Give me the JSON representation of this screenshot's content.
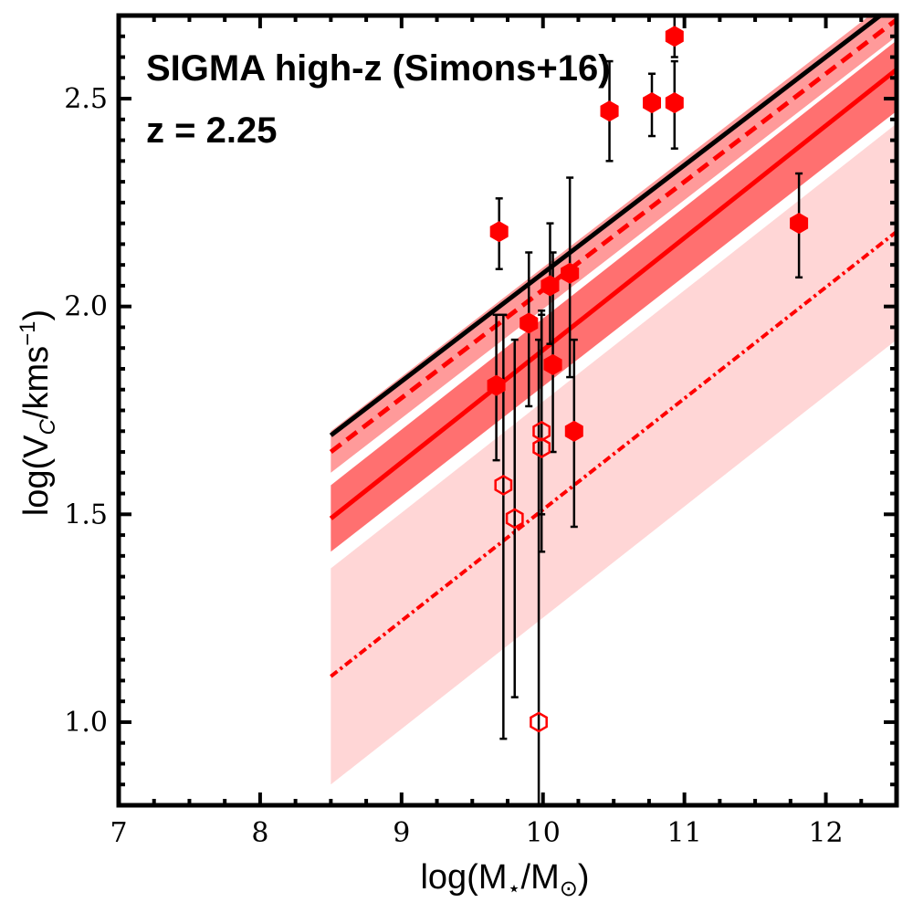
{
  "chart_data": {
    "type": "scatter",
    "annotations": [
      "SIGMA high-z (Simons+16)",
      "z = 2.25"
    ],
    "xlabel": {
      "main": "log(M",
      "sub1": "⋆",
      "mid": "/M",
      "sub2": "⊙",
      "end": ")"
    },
    "ylabel": {
      "main": "log(V",
      "sub": "C",
      "mid": "/kms",
      "sup": "−1",
      "end": ")"
    },
    "xlim": [
      7,
      12.5
    ],
    "ylim": [
      0.8,
      2.7
    ],
    "xticks": [
      7,
      8,
      9,
      10,
      11,
      12
    ],
    "xtick_labels": [
      "7",
      "8",
      "9",
      "10",
      "11",
      "12"
    ],
    "yticks": [
      1.0,
      1.5,
      2.0,
      2.5
    ],
    "ytick_labels": [
      "1.0",
      "1.5",
      "2.0",
      "2.5"
    ],
    "grid": false,
    "colors": {
      "red": "#ff0000",
      "black": "#000000",
      "light_red": "#ffd6d6",
      "mid_red": "#ff9a9a",
      "strong_red": "#ff7070"
    },
    "lines": [
      {
        "style": "solid-black",
        "color": "#000000",
        "x": [
          8.5,
          12.5
        ],
        "y": [
          1.69,
          2.73
        ]
      },
      {
        "style": "dashed-red",
        "color": "#ff0000",
        "x": [
          8.5,
          12.5
        ],
        "y": [
          1.65,
          2.69
        ]
      },
      {
        "style": "solid-red",
        "color": "#ff0000",
        "x": [
          8.5,
          12.5
        ],
        "y": [
          1.49,
          2.57
        ]
      },
      {
        "style": "dotted-red",
        "color": "#ff0000",
        "x": [
          8.5,
          12.5
        ],
        "y": [
          1.11,
          2.18
        ]
      }
    ],
    "bands": [
      {
        "color": "#ffd6d6",
        "x": [
          8.5,
          12.5
        ],
        "lower": [
          0.85,
          1.92
        ],
        "upper": [
          1.37,
          2.44
        ]
      },
      {
        "color": "#ff9a9a",
        "x": [
          8.5,
          12.5
        ],
        "lower": [
          1.6,
          2.65
        ],
        "upper": [
          1.7,
          2.75
        ]
      },
      {
        "color": "#ff7070",
        "x": [
          8.5,
          12.5
        ],
        "lower": [
          1.41,
          2.47
        ],
        "upper": [
          1.57,
          2.64
        ]
      }
    ],
    "series": [
      {
        "marker": "filled-hexagon",
        "color": "#ff0000",
        "points": [
          {
            "x": 9.67,
            "y": 1.81,
            "ylo": 1.63,
            "yhi": 1.98
          },
          {
            "x": 9.69,
            "y": 2.18,
            "ylo": 2.09,
            "yhi": 2.26
          },
          {
            "x": 9.9,
            "y": 1.96,
            "ylo": 1.76,
            "yhi": 2.13
          },
          {
            "x": 10.05,
            "y": 2.05,
            "ylo": 1.91,
            "yhi": 2.2
          },
          {
            "x": 10.07,
            "y": 1.86,
            "ylo": 1.65,
            "yhi": 2.13
          },
          {
            "x": 10.19,
            "y": 2.08,
            "ylo": 1.83,
            "yhi": 2.31
          },
          {
            "x": 10.22,
            "y": 1.7,
            "ylo": 1.47,
            "yhi": 1.92
          },
          {
            "x": 10.47,
            "y": 2.47,
            "ylo": 2.35,
            "yhi": 2.59
          },
          {
            "x": 10.77,
            "y": 2.49,
            "ylo": 2.41,
            "yhi": 2.56
          },
          {
            "x": 10.93,
            "y": 2.49,
            "ylo": 2.38,
            "yhi": 2.59
          },
          {
            "x": 10.93,
            "y": 2.65,
            "ylo": 2.6,
            "yhi": 2.7
          },
          {
            "x": 11.81,
            "y": 2.2,
            "ylo": 2.07,
            "yhi": 2.32
          }
        ]
      },
      {
        "marker": "open-hexagon",
        "color": "#ff0000",
        "points": [
          {
            "x": 9.72,
            "y": 1.57,
            "ylo": 0.96,
            "yhi": 1.98
          },
          {
            "x": 9.8,
            "y": 1.49,
            "ylo": 1.06,
            "yhi": 1.92
          },
          {
            "x": 9.97,
            "y": 1.0,
            "ylo": 0.8,
            "yhi": 1.92
          },
          {
            "x": 9.99,
            "y": 1.7,
            "ylo": 1.5,
            "yhi": 1.99
          },
          {
            "x": 9.99,
            "y": 1.66,
            "ylo": 1.41,
            "yhi": 1.98
          }
        ]
      }
    ]
  }
}
